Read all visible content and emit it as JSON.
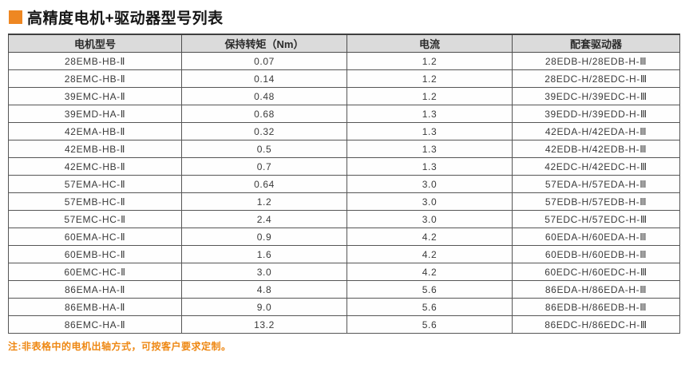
{
  "title": "高精度电机+驱动器型号列表",
  "note": "注:非表格中的电机出轴方式，可按客户要求定制。",
  "colors": {
    "accent_orange": "#EE8722",
    "note_orange": "#EE8712",
    "header_bg": "#DBDBDB",
    "border": "#4D4D4D",
    "text": "#3A3A3A"
  },
  "table": {
    "columns": [
      "电机型号",
      "保持转矩（Nm）",
      "电流",
      "配套驱动器"
    ],
    "rows": [
      [
        "28EMB-HB-Ⅱ",
        "0.07",
        "1.2",
        "28EDB-H/28EDB-H-Ⅲ"
      ],
      [
        "28EMC-HB-Ⅱ",
        "0.14",
        "1.2",
        "28EDC-H/28EDC-H-Ⅲ"
      ],
      [
        "39EMC-HA-Ⅱ",
        "0.48",
        "1.2",
        "39EDC-H/39EDC-H-Ⅲ"
      ],
      [
        "39EMD-HA-Ⅱ",
        "0.68",
        "1.3",
        "39EDD-H/39EDD-H-Ⅲ"
      ],
      [
        "42EMA-HB-Ⅱ",
        "0.32",
        "1.3",
        "42EDA-H/42EDA-H-Ⅲ"
      ],
      [
        "42EMB-HB-Ⅱ",
        "0.5",
        "1.3",
        "42EDB-H/42EDB-H-Ⅲ"
      ],
      [
        "42EMC-HB-Ⅱ",
        "0.7",
        "1.3",
        "42EDC-H/42EDC-H-Ⅲ"
      ],
      [
        "57EMA-HC-Ⅱ",
        "0.64",
        "3.0",
        "57EDA-H/57EDA-H-Ⅲ"
      ],
      [
        "57EMB-HC-Ⅱ",
        "1.2",
        "3.0",
        "57EDB-H/57EDB-H-Ⅲ"
      ],
      [
        "57EMC-HC-Ⅱ",
        "2.4",
        "3.0",
        "57EDC-H/57EDC-H-Ⅲ"
      ],
      [
        "60EMA-HC-Ⅱ",
        "0.9",
        "4.2",
        "60EDA-H/60EDA-H-Ⅲ"
      ],
      [
        "60EMB-HC-Ⅱ",
        "1.6",
        "4.2",
        "60EDB-H/60EDB-H-Ⅲ"
      ],
      [
        "60EMC-HC-Ⅱ",
        "3.0",
        "4.2",
        "60EDC-H/60EDC-H-Ⅲ"
      ],
      [
        "86EMA-HA-Ⅱ",
        "4.8",
        "5.6",
        "86EDA-H/86EDA-H-Ⅲ"
      ],
      [
        "86EMB-HA-Ⅱ",
        "9.0",
        "5.6",
        "86EDB-H/86EDB-H-Ⅲ"
      ],
      [
        "86EMC-HA-Ⅱ",
        "13.2",
        "5.6",
        "86EDC-H/86EDC-H-Ⅲ"
      ]
    ]
  }
}
